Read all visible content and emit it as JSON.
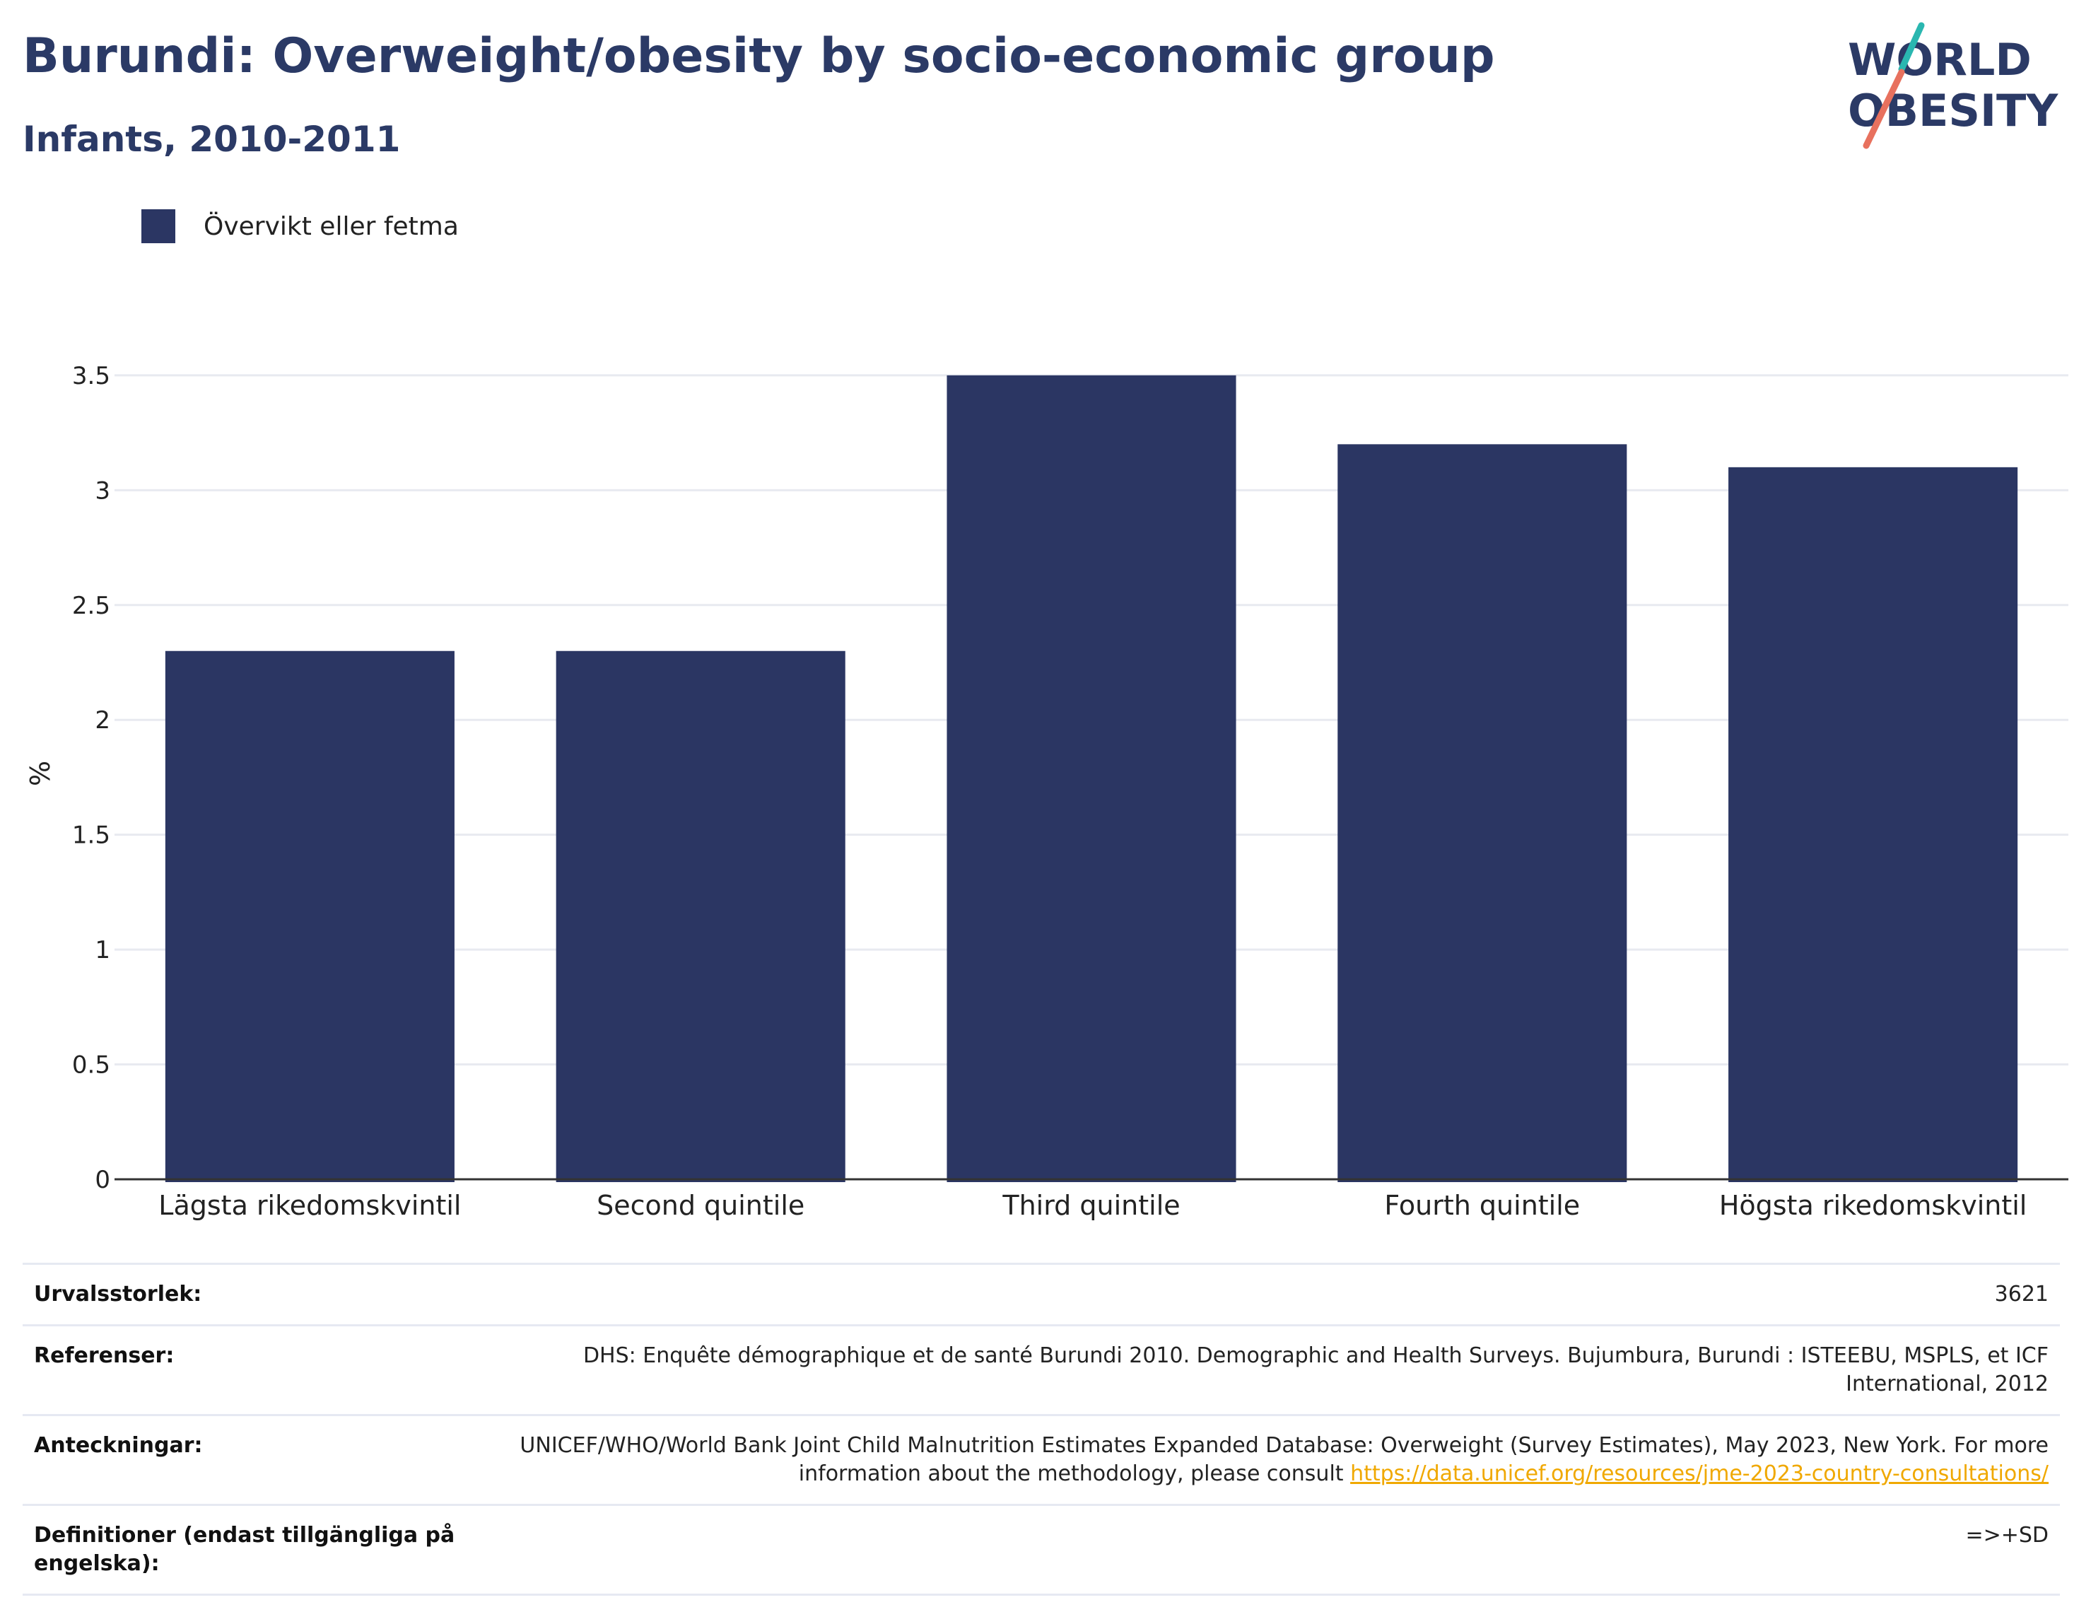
{
  "header": {
    "title": "Burundi: Overweight/obesity by socio-economic group",
    "subtitle": "Infants, 2010-2011"
  },
  "logo": {
    "line1": "WORLD",
    "line2": "OBESITY",
    "colors": {
      "text": "#2b3a66",
      "slash_top": "#2ab7b0",
      "slash_bottom": "#e8715e"
    }
  },
  "legend": {
    "label": "Övervikt eller fetma",
    "color": "#2b3663"
  },
  "chart_data": {
    "type": "bar",
    "title": "Burundi: Overweight/obesity by socio-economic group",
    "subtitle": "Infants, 2010-2011",
    "categories": [
      "Lägsta rikedomskvintil",
      "Second quintile",
      "Third quintile",
      "Fourth quintile",
      "Högsta rikedomskvintil"
    ],
    "series": [
      {
        "name": "Övervikt eller fetma",
        "values": [
          2.3,
          2.3,
          3.5,
          3.2,
          3.1
        ],
        "color": "#2b3663"
      }
    ],
    "ylabel": "%",
    "xlabel": "",
    "ylim": [
      0,
      3.5
    ],
    "yticks": [
      "0",
      "0.5",
      "1",
      "1.5",
      "2",
      "2.5",
      "3",
      "3.5"
    ],
    "grid": true,
    "legend_position": "top-left"
  },
  "info": [
    {
      "key": "Urvalsstorlek:",
      "value": "3621"
    },
    {
      "key": "Referenser:",
      "value": "DHS: Enquête démographique et de santé Burundi 2010. Demographic and Health Surveys. Bujumbura, Burundi : ISTEEBU, MSPLS, et ICF International, 2012"
    },
    {
      "key": "Anteckningar:",
      "value": "UNICEF/WHO/World Bank Joint Child Malnutrition Estimates Expanded Database: Overweight (Survey Estimates), May 2023, New York. For more information about the methodology, please consult",
      "link": "https://data.unicef.org/resources/jme-2023-country-consultations/"
    },
    {
      "key": "Definitioner (endast tillgängliga på engelska):",
      "value": "=>+SD"
    }
  ]
}
